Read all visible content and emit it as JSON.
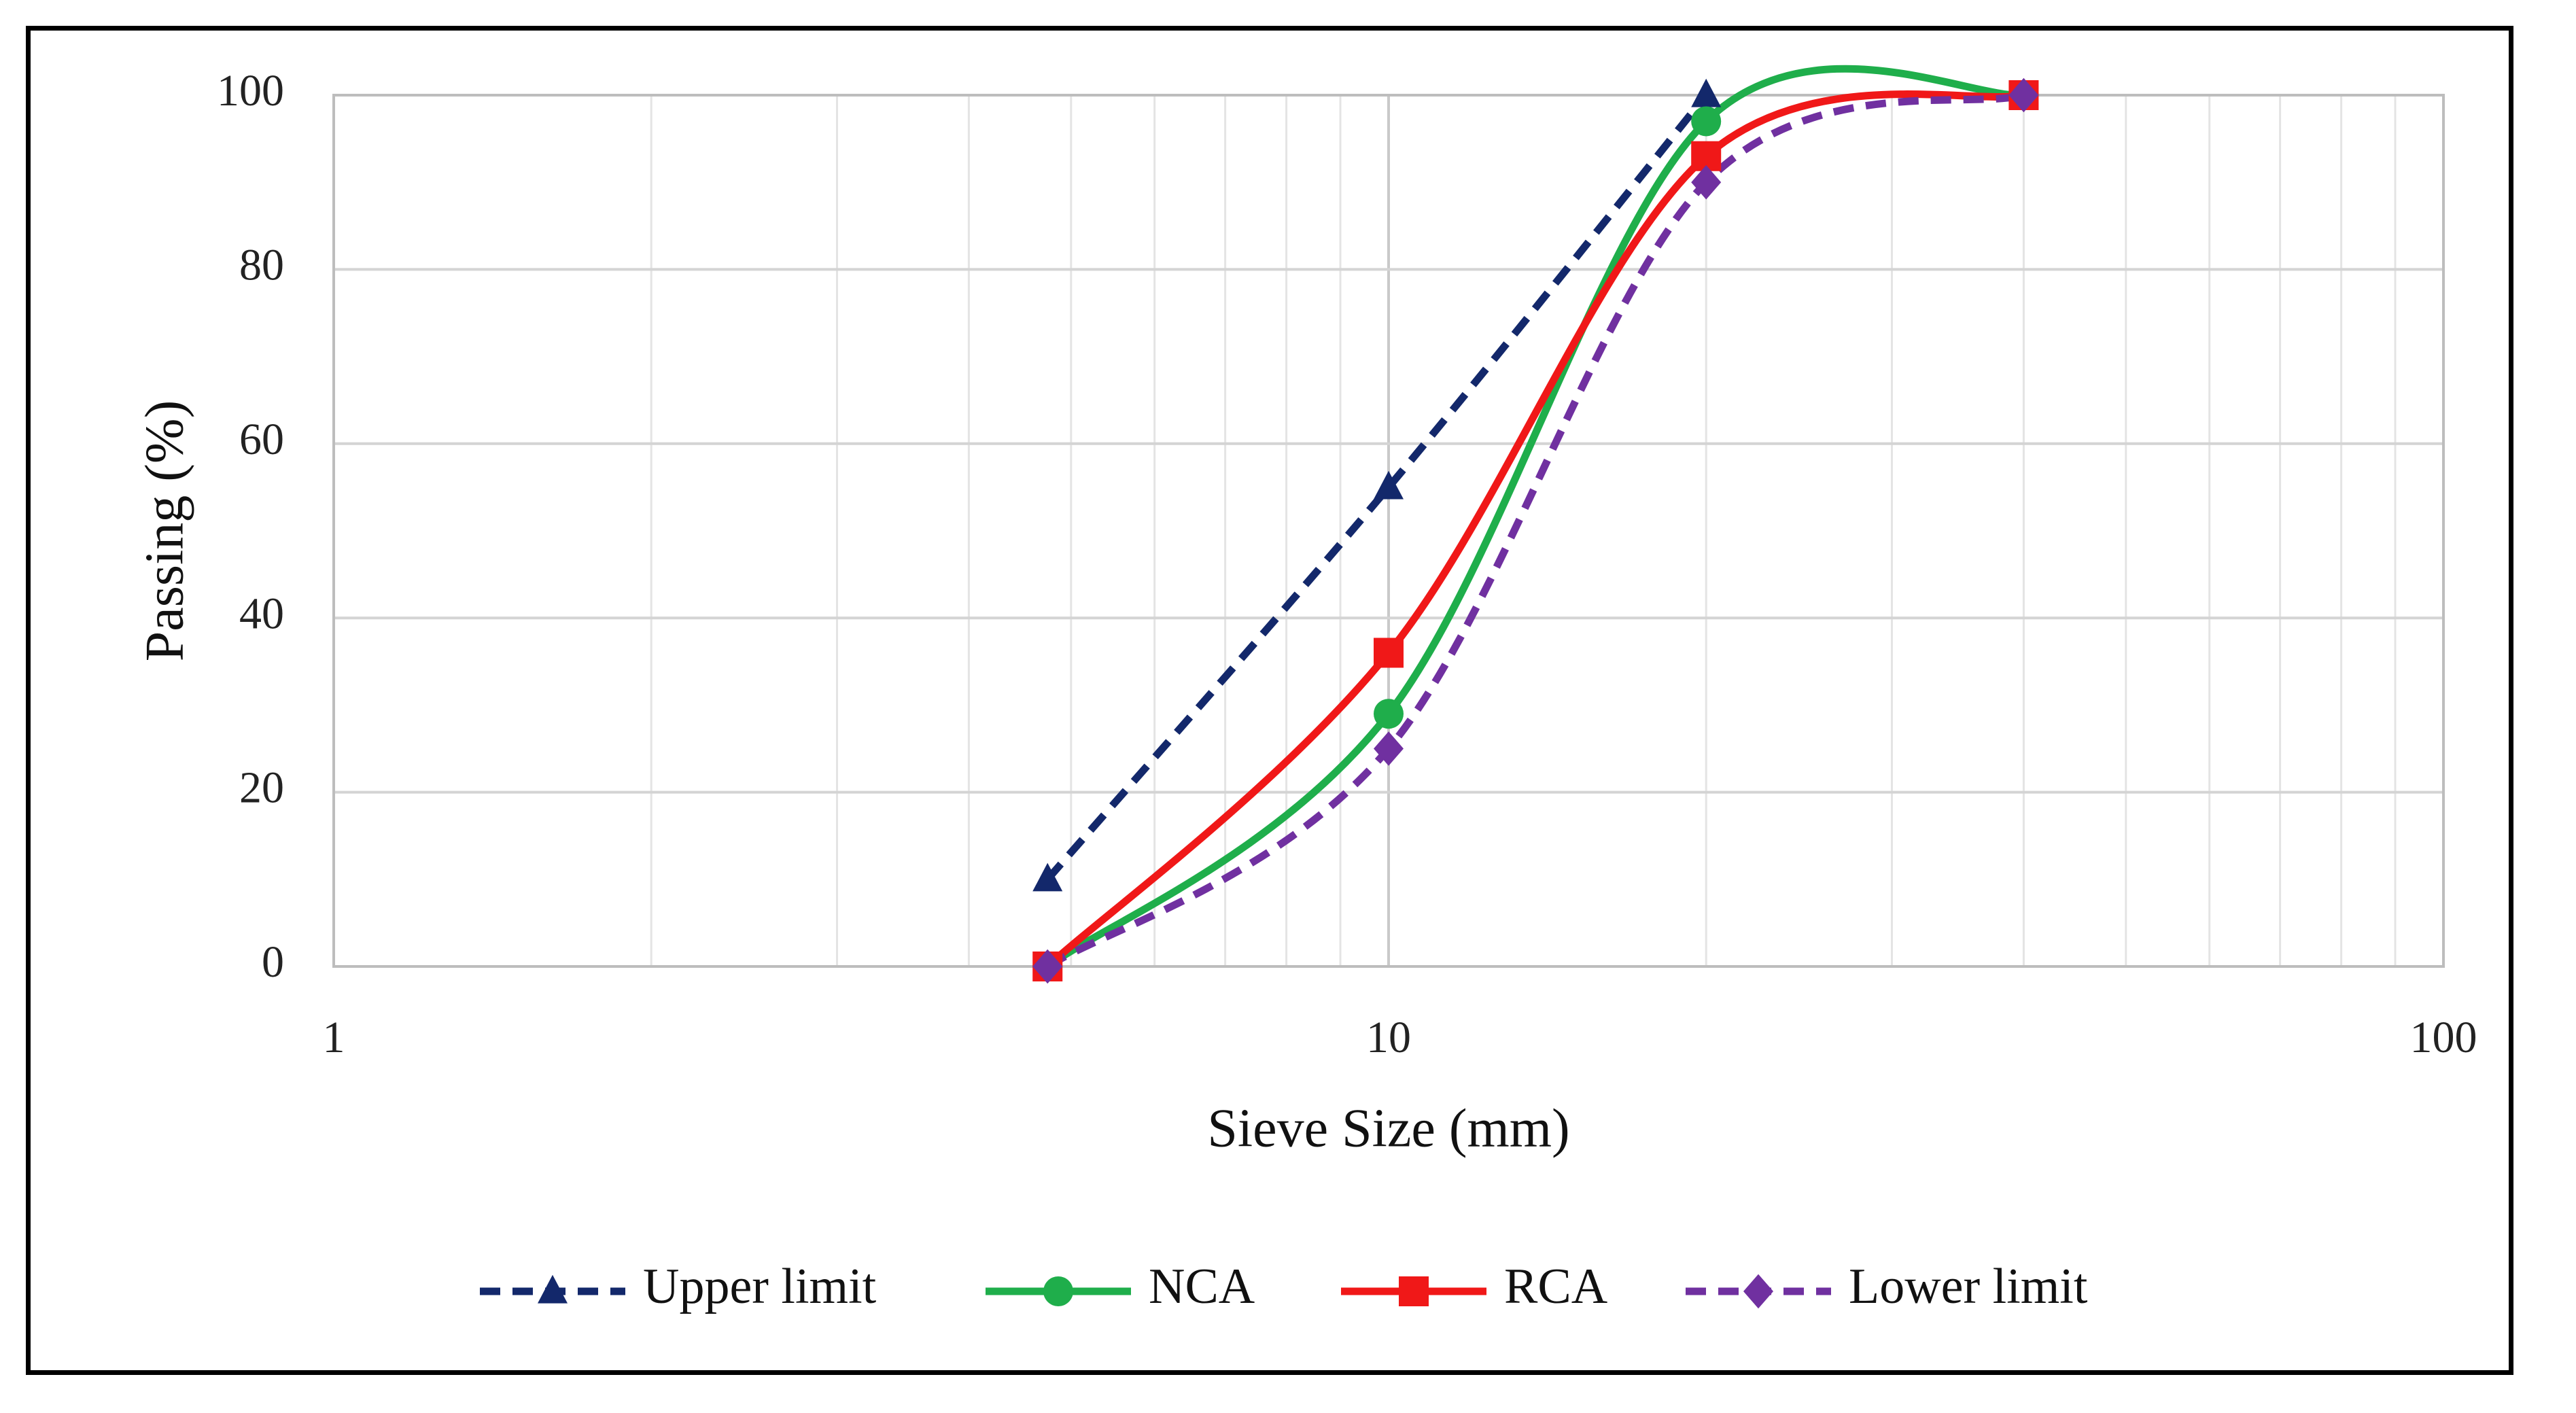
{
  "chart_data": {
    "type": "line",
    "xscale": "log",
    "xlabel": "Sieve Size (mm)",
    "ylabel": "Passing (%)",
    "xlim": [
      1,
      100
    ],
    "ylim": [
      0,
      100
    ],
    "xticks": [
      1,
      10,
      100
    ],
    "xtick_labels": [
      "1",
      "10",
      "100"
    ],
    "yticks": [
      0,
      20,
      40,
      60,
      80,
      100
    ],
    "ytick_labels": [
      "0",
      "20",
      "40",
      "60",
      "80",
      "100"
    ],
    "grid": true,
    "legend_position": "bottom",
    "series": [
      {
        "name": "Upper limit",
        "color": "#13286b",
        "dash": true,
        "marker": "triangle",
        "x": [
          4.75,
          10,
          20
        ],
        "y": [
          10,
          55,
          100
        ]
      },
      {
        "name": "NCA",
        "color": "#1fae4b",
        "dash": false,
        "marker": "circle",
        "x": [
          4.75,
          10,
          20,
          40
        ],
        "y": [
          0,
          29,
          97,
          100
        ]
      },
      {
        "name": "RCA",
        "color": "#f01818",
        "dash": false,
        "marker": "square",
        "x": [
          4.75,
          10,
          20,
          40
        ],
        "y": [
          0,
          36,
          93,
          100
        ]
      },
      {
        "name": "Lower limit",
        "color": "#7030a0",
        "dash": true,
        "marker": "diamond",
        "x": [
          4.75,
          10,
          20,
          40
        ],
        "y": [
          0,
          25,
          90,
          100
        ]
      }
    ]
  }
}
